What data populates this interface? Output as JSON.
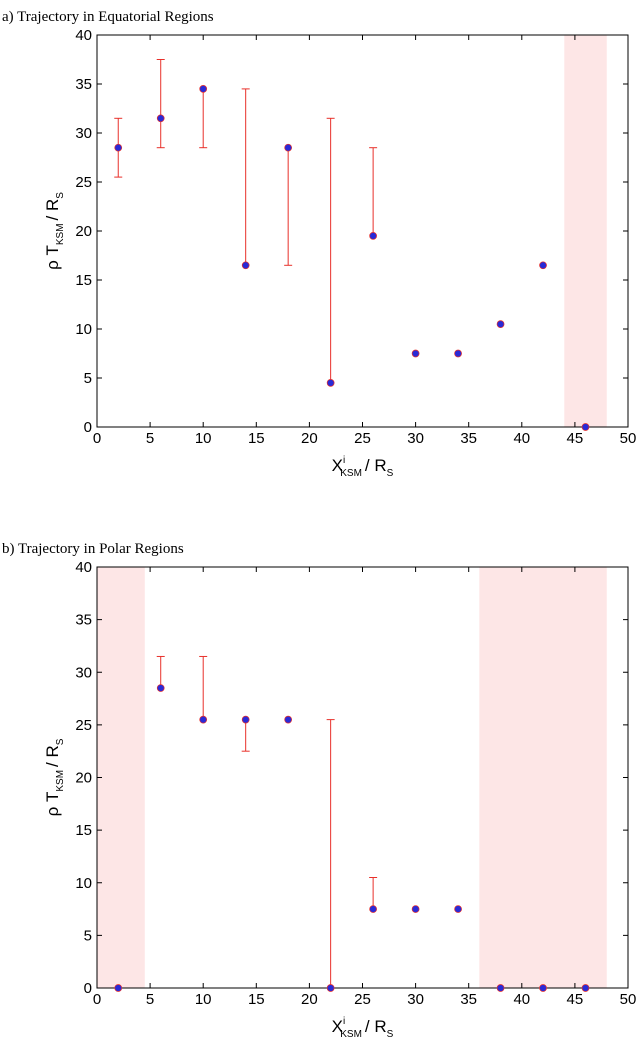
{
  "chart_data": [
    {
      "type": "errorbar",
      "title": "a) Trajectory in Equatorial Regions",
      "xlabel": [
        {
          "text": "X"
        },
        {
          "text": "i",
          "sup": true
        },
        {
          "text": "KSM",
          "sub": true
        },
        {
          "text": "/ R"
        },
        {
          "text": "S",
          "sub": true
        }
      ],
      "ylabel": [
        {
          "text": "ρ T"
        },
        {
          "text": "KSM",
          "sub": true
        },
        {
          "text": "/ R"
        },
        {
          "text": "S",
          "sub": true
        }
      ],
      "x": [
        2,
        6,
        10,
        14,
        18,
        22,
        26,
        30,
        34,
        38,
        42,
        46
      ],
      "values": [
        28.5,
        31.5,
        34.5,
        16.5,
        28.5,
        4.5,
        19.5,
        7.5,
        7.5,
        10.5,
        16.5,
        0
      ],
      "err_lower": [
        3,
        3,
        6,
        0,
        12,
        0,
        0,
        0,
        0,
        0,
        0,
        0
      ],
      "err_upper": [
        3,
        6,
        0,
        18,
        0,
        27,
        9,
        0,
        0,
        0,
        0,
        0
      ],
      "color": "#2a2ad6",
      "error_color": "#e8302a",
      "shaded_regions": [
        [
          44,
          48
        ]
      ],
      "shade_color": "#fde6e6",
      "xlim": [
        0,
        50
      ],
      "xticks": [
        0,
        5,
        10,
        15,
        20,
        25,
        30,
        35,
        40,
        45,
        50
      ],
      "ylim": [
        0,
        40
      ],
      "yticks": [
        0,
        5,
        10,
        15,
        20,
        25,
        30,
        35,
        40
      ],
      "grid": false
    },
    {
      "type": "errorbar",
      "title": "b) Trajectory in Polar Regions",
      "xlabel": [
        {
          "text": "X"
        },
        {
          "text": "i",
          "sup": true
        },
        {
          "text": "KSM",
          "sub": true
        },
        {
          "text": "/ R"
        },
        {
          "text": "S",
          "sub": true
        }
      ],
      "ylabel": [
        {
          "text": "ρ T"
        },
        {
          "text": "KSM",
          "sub": true
        },
        {
          "text": "/ R"
        },
        {
          "text": "S",
          "sub": true
        }
      ],
      "x": [
        2,
        6,
        10,
        14,
        18,
        22,
        26,
        30,
        34,
        38,
        42,
        46
      ],
      "values": [
        0,
        28.5,
        25.5,
        25.5,
        25.5,
        0,
        7.5,
        7.5,
        7.5,
        0,
        0,
        0
      ],
      "err_lower": [
        0,
        0,
        0,
        3,
        0,
        0,
        0,
        0,
        0,
        0,
        0,
        0
      ],
      "err_upper": [
        0,
        3,
        6,
        0,
        0,
        25.5,
        3,
        0,
        0,
        0,
        0,
        0
      ],
      "color": "#2a2ad6",
      "error_color": "#e8302a",
      "shaded_regions": [
        [
          0,
          4.5
        ],
        [
          36,
          48
        ]
      ],
      "shade_color": "#fde6e6",
      "xlim": [
        0,
        50
      ],
      "xticks": [
        0,
        5,
        10,
        15,
        20,
        25,
        30,
        35,
        40,
        45,
        50
      ],
      "ylim": [
        0,
        40
      ],
      "yticks": [
        0,
        5,
        10,
        15,
        20,
        25,
        30,
        35,
        40
      ],
      "grid": false
    }
  ]
}
